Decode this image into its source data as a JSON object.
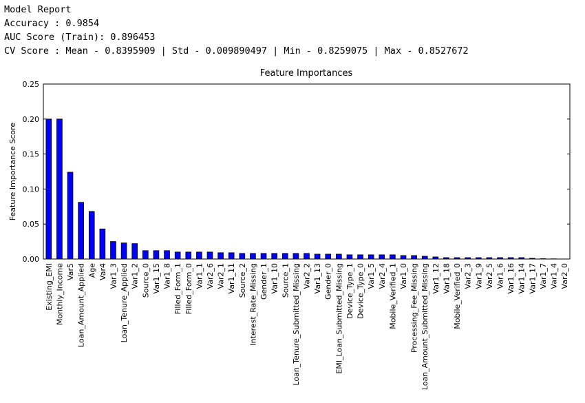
{
  "report": [
    "Model Report",
    "Accuracy : 0.9854",
    "AUC Score (Train): 0.896453",
    "CV Score : Mean - 0.8395909 | Std - 0.009890497 | Min - 0.8259075 | Max - 0.8527672"
  ],
  "chart_data": {
    "type": "bar",
    "title": "Feature Importances",
    "y_label": "Feature Importance Score",
    "categories": [
      "Existing_EMI",
      "Monthly_Income",
      "Var5",
      "Loan_Amount_Applied",
      "Age",
      "Var4",
      "Var1_3",
      "Loan_Tenure_Applied",
      "Var1_2",
      "Source_0",
      "Var1_15",
      "Var1_8",
      "Filled_Form_1",
      "Filled_Form_0",
      "Var1_1",
      "Var2_6",
      "Var2_1",
      "Var1_11",
      "Source_2",
      "Interest_Rate_Missing",
      "Gender_1",
      "Var1_10",
      "Source_1",
      "Loan_Tenure_Submitted_Missing",
      "Var2_2",
      "Var1_13",
      "Gender_0",
      "EMI_Loan_Submitted_Missing",
      "Device_Type_1",
      "Device_Type_0",
      "Var1_5",
      "Var2_4",
      "Mobile_Verified_1",
      "Var1_0",
      "Processing_Fee_Missing",
      "Loan_Amount_Submitted_Missing",
      "Var1_12",
      "Var1_18",
      "Mobile_Verified_0",
      "Var2_3",
      "Var1_9",
      "Var2_5",
      "Var1_6",
      "Var1_16",
      "Var1_14",
      "Var1_17",
      "Var1_7",
      "Var1_4",
      "Var2_0"
    ],
    "values": [
      0.2,
      0.2,
      0.124,
      0.081,
      0.068,
      0.043,
      0.025,
      0.023,
      0.022,
      0.012,
      0.012,
      0.012,
      0.01,
      0.01,
      0.01,
      0.01,
      0.009,
      0.009,
      0.008,
      0.008,
      0.008,
      0.008,
      0.008,
      0.008,
      0.008,
      0.007,
      0.007,
      0.007,
      0.006,
      0.006,
      0.006,
      0.006,
      0.006,
      0.005,
      0.005,
      0.004,
      0.003,
      0.002,
      0.002,
      0.002,
      0.002,
      0.002,
      0.002,
      0.002,
      0.002,
      0.001,
      0.0005,
      0.0003,
      0.0001
    ],
    "color": "#0000ff",
    "ylim": [
      0,
      0.25
    ],
    "yticks": [
      {
        "value": 0,
        "label": "0.00"
      },
      0.05,
      {
        "value": 0.1,
        "label": "0.10"
      },
      0.15,
      {
        "value": 0.2,
        "label": "0.20"
      },
      0.25
    ],
    "grid": false
  }
}
